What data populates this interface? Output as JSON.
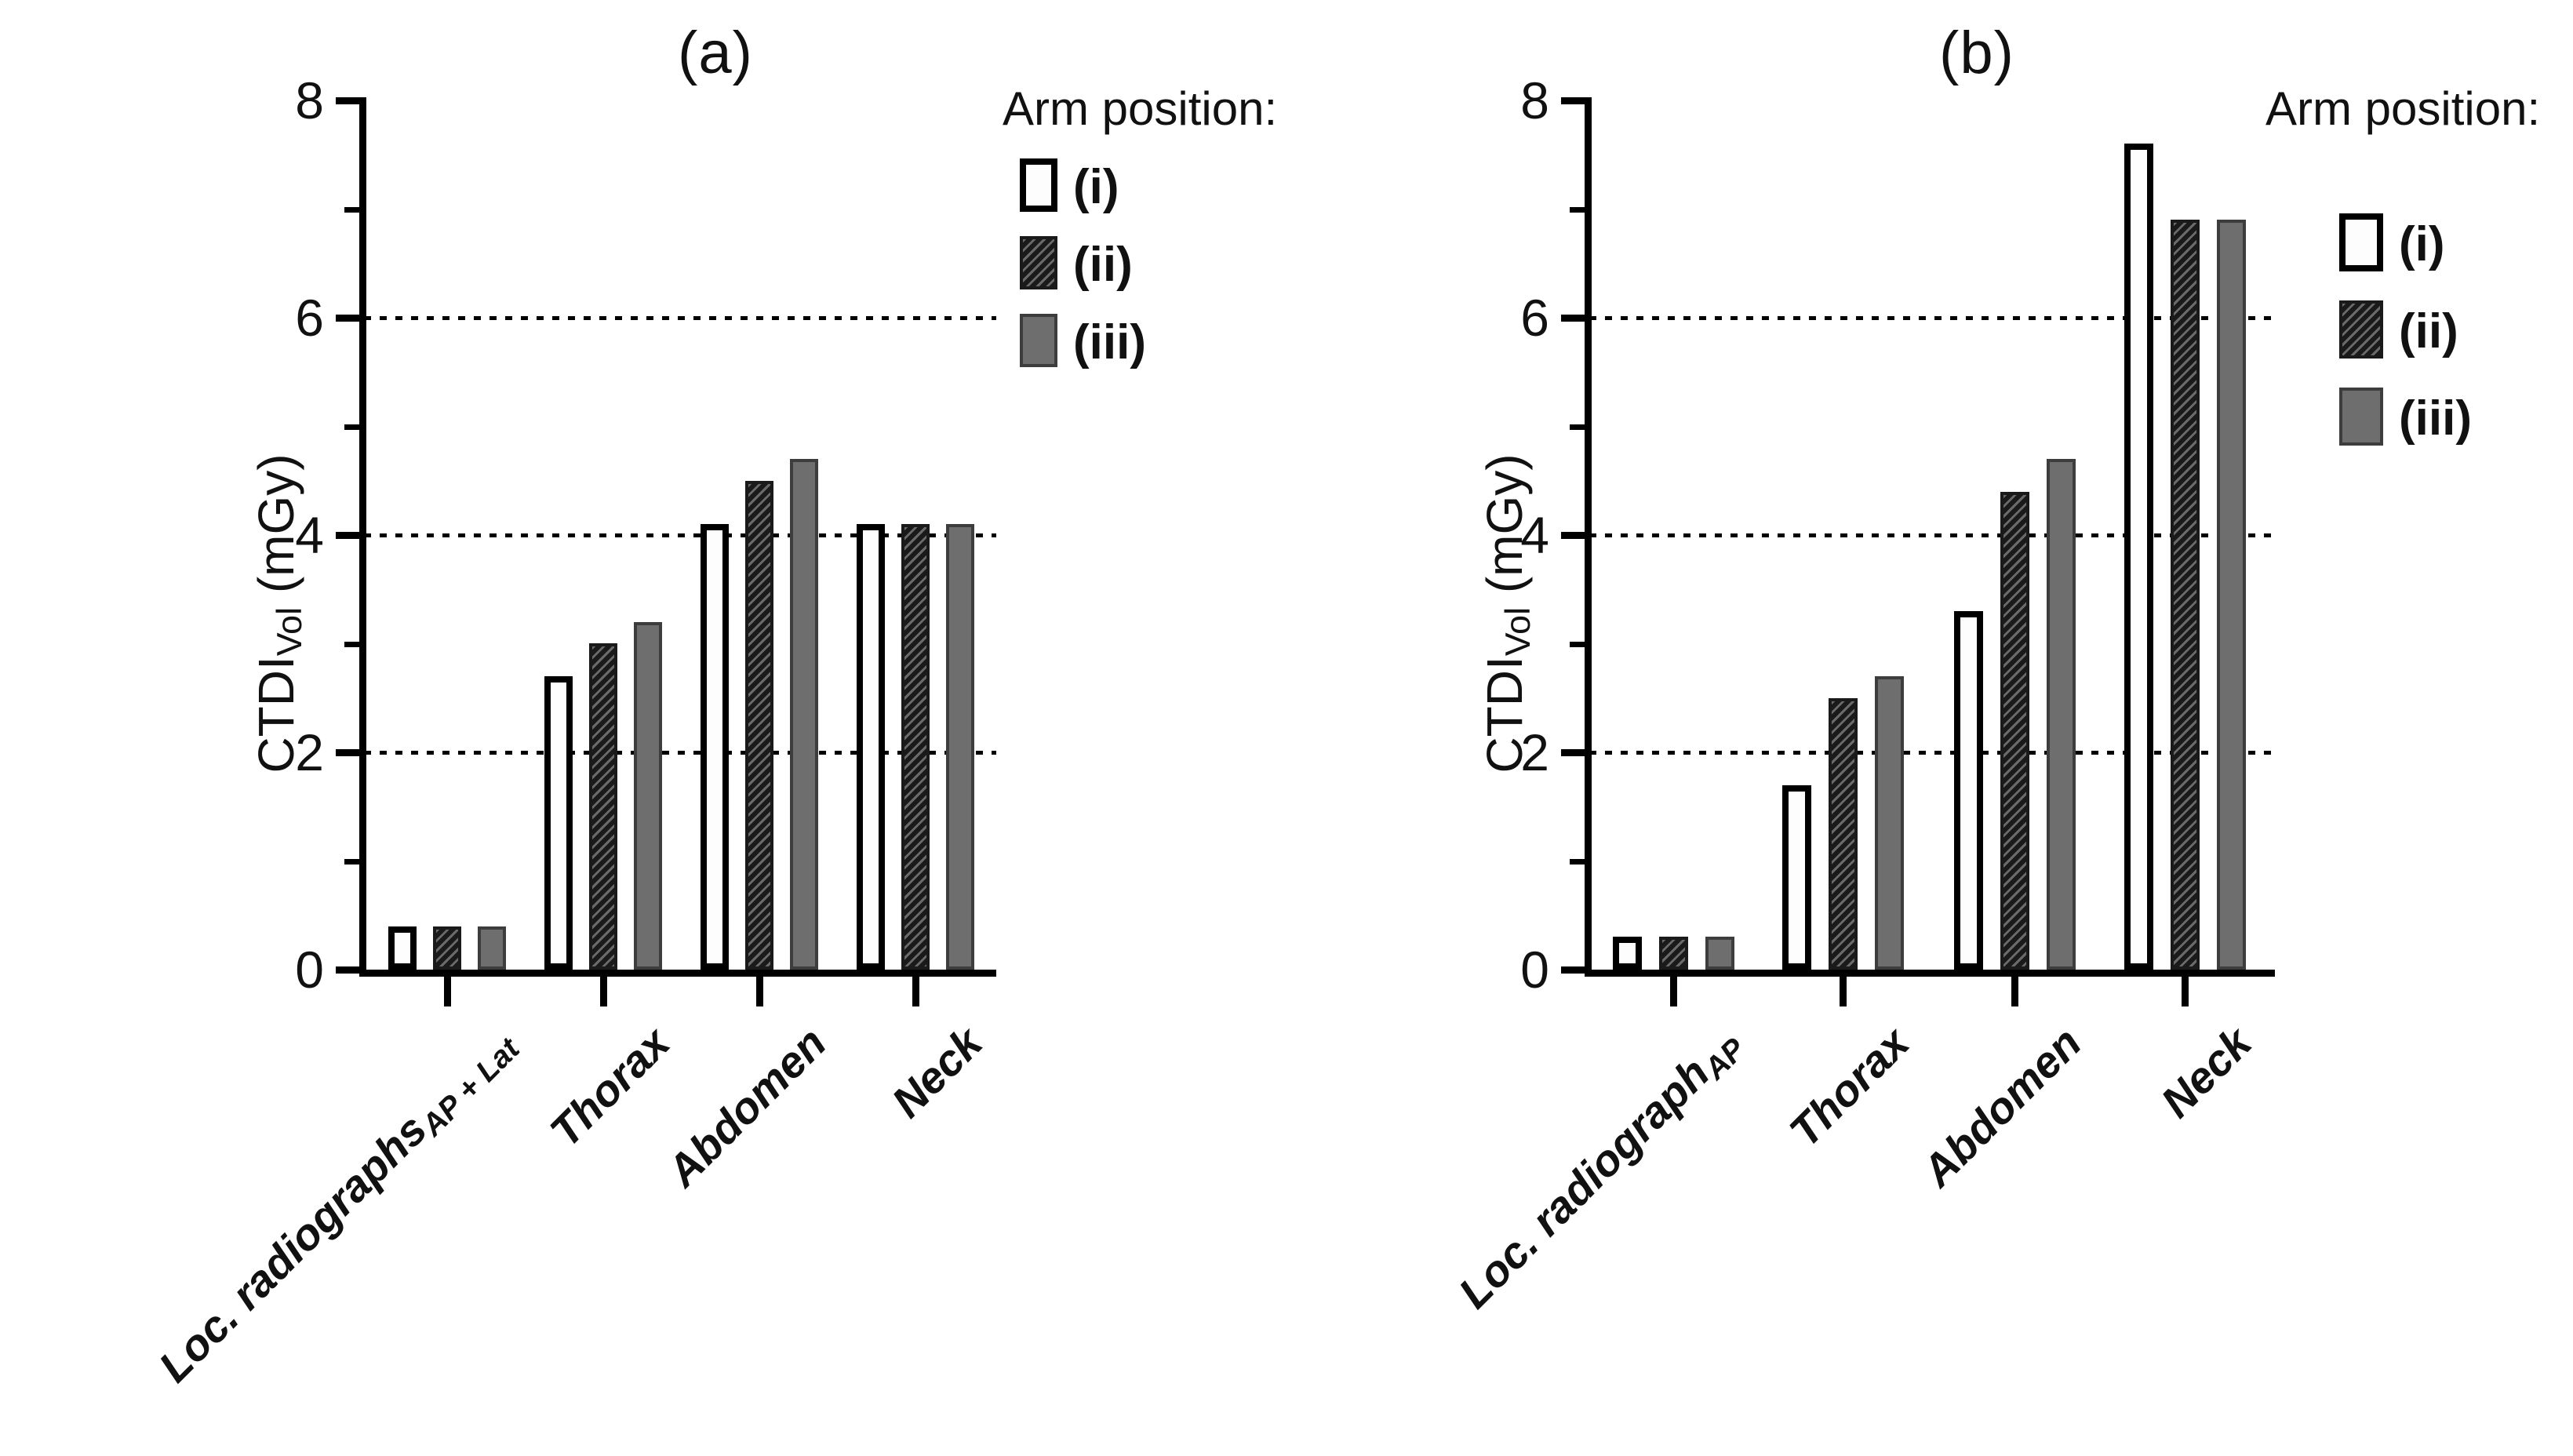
{
  "figure": {
    "legend_title": "Arm position:",
    "series_names": [
      "(i)",
      "(ii)",
      "(iii)"
    ],
    "series_swatches": [
      "white-outlined",
      "dark-diagonal-hatch",
      "solid-gray"
    ],
    "colors": {
      "bar_white": "#fdfdfd",
      "bar_gray": "#6e6e6e",
      "bar_gray_edge": "#3d3d3d",
      "hatch_dark": "#1a1a1a",
      "hatch_light": "#6a6a6a",
      "axis": "#000000"
    }
  },
  "chart_data": [
    {
      "type": "bar",
      "panel_label": "(a)",
      "ylabel_main": "CTDI",
      "ylabel_sub": "Vol",
      "ylabel_unit": " (mGy)",
      "ylim": [
        0,
        8
      ],
      "yticks": [
        0,
        2,
        4,
        6,
        8
      ],
      "minor_yticks": [
        1,
        3,
        5,
        7
      ],
      "gridlines": [
        2,
        4,
        6
      ],
      "grid_style": "dotted-horizontal",
      "legend_position": "top-right",
      "categories": [
        {
          "text": "Loc. radiographs",
          "sub": "AP + Lat"
        },
        {
          "text": "Thorax",
          "sub": ""
        },
        {
          "text": "Abdomen",
          "sub": ""
        },
        {
          "text": "Neck",
          "sub": ""
        }
      ],
      "series": [
        {
          "name": "(i)",
          "values": [
            0.4,
            2.7,
            4.1,
            4.1
          ]
        },
        {
          "name": "(ii)",
          "values": [
            0.4,
            3.0,
            4.5,
            4.1
          ]
        },
        {
          "name": "(iii)",
          "values": [
            0.4,
            3.2,
            4.7,
            4.1
          ]
        }
      ]
    },
    {
      "type": "bar",
      "panel_label": "(b)",
      "ylabel_main": "CTDI",
      "ylabel_sub": "Vol",
      "ylabel_unit": " (mGy)",
      "ylim": [
        0,
        8
      ],
      "yticks": [
        0,
        2,
        4,
        6,
        8
      ],
      "minor_yticks": [
        1,
        3,
        5,
        7
      ],
      "gridlines": [
        2,
        4,
        6
      ],
      "grid_style": "dotted-horizontal",
      "legend_position": "top-right",
      "categories": [
        {
          "text": "Loc. radiograph",
          "sub": "AP"
        },
        {
          "text": "Thorax",
          "sub": ""
        },
        {
          "text": "Abdomen",
          "sub": ""
        },
        {
          "text": "Neck",
          "sub": ""
        }
      ],
      "series": [
        {
          "name": "(i)",
          "values": [
            0.3,
            1.7,
            3.3,
            7.6
          ]
        },
        {
          "name": "(ii)",
          "values": [
            0.3,
            2.5,
            4.4,
            6.9
          ]
        },
        {
          "name": "(iii)",
          "values": [
            0.3,
            2.7,
            4.7,
            6.9
          ]
        }
      ]
    }
  ]
}
